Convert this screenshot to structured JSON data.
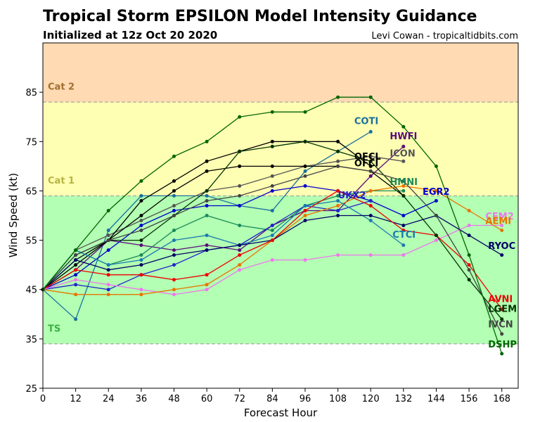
{
  "header": {
    "title": "Tropical Storm EPSILON Model Intensity Guidance",
    "subtitle": "Initialized at 12z Oct 20 2020",
    "credit": "Levi Cowan - tropicaltidbits.com"
  },
  "chart_data": {
    "type": "line",
    "xlabel": "Forecast Hour",
    "ylabel": "Wind Speed (kt)",
    "xlim": [
      0,
      174
    ],
    "ylim": [
      25,
      95
    ],
    "xticks": [
      0,
      12,
      24,
      36,
      48,
      60,
      72,
      84,
      96,
      108,
      120,
      132,
      144,
      156,
      168
    ],
    "yticks": [
      25,
      35,
      45,
      55,
      65,
      75,
      85
    ],
    "grid": false,
    "bands": [
      {
        "label": "TS",
        "from": 34,
        "to": 64,
        "color": "#b3ffb3",
        "label_color": "#3cb043",
        "label_y": 36.5
      },
      {
        "label": "Cat 1",
        "from": 64,
        "to": 83,
        "color": "#ffffb3",
        "label_color": "#b5b545",
        "label_y": 66.5
      },
      {
        "label": "Cat 2",
        "from": 83,
        "to": 95,
        "color": "#ffdab3",
        "label_color": "#a07030",
        "label_y": 85.5
      }
    ],
    "series": [
      {
        "name": "COTI",
        "color": "#1a6e9e",
        "label_x": 114,
        "label_y": 78.5,
        "x": [
          0,
          12,
          24,
          36,
          48,
          60,
          72,
          84,
          96,
          108,
          120
        ],
        "y": [
          45,
          39,
          57,
          64,
          64,
          64,
          62,
          61,
          69,
          73,
          77
        ]
      },
      {
        "name": "HWFI",
        "color": "#5a0a7a",
        "label_x": 127,
        "label_y": 75.5,
        "x": [
          0,
          12,
          24,
          36,
          48,
          60,
          72,
          84,
          96,
          108,
          120,
          132
        ],
        "y": [
          45,
          49,
          55,
          54,
          53,
          54,
          53,
          58,
          61,
          61,
          68,
          74
        ]
      },
      {
        "name": "ICON",
        "color": "#555555",
        "label_x": 127,
        "label_y": 72.0,
        "x": [
          0,
          12,
          24,
          36,
          48,
          60,
          72,
          84,
          96,
          108,
          120,
          132
        ],
        "y": [
          45,
          53,
          56,
          59,
          62,
          65,
          66,
          68,
          70,
          71,
          72,
          71
        ]
      },
      {
        "name": "OFCL",
        "color": "#000000",
        "label_x": 114,
        "label_y": 71.3,
        "x": [
          0,
          12,
          24,
          36,
          48,
          60,
          72,
          84,
          96,
          108,
          120
        ],
        "y": [
          45,
          51,
          55,
          63,
          67,
          71,
          73,
          75,
          75,
          75,
          70
        ]
      },
      {
        "name": "OFCI",
        "color": "#000000",
        "label_x": 114,
        "label_y": 70.0,
        "x": [
          0,
          12,
          24,
          36,
          48,
          60,
          72,
          84,
          96,
          108,
          120,
          132
        ],
        "y": [
          45,
          50,
          55,
          60,
          65,
          69,
          70,
          70,
          70,
          70,
          69,
          64
        ]
      },
      {
        "name": "HMNI",
        "color": "#1a8a5a",
        "label_x": 127,
        "label_y": 66.2,
        "x": [
          0,
          12,
          24,
          36,
          48,
          60,
          72,
          84,
          96,
          108,
          120,
          132
        ],
        "y": [
          45,
          53,
          50,
          52,
          57,
          60,
          58,
          57,
          62,
          64,
          65,
          65
        ]
      },
      {
        "name": "EGR2",
        "color": "#0000cc",
        "label_x": 139,
        "label_y": 64.2,
        "x": [
          0,
          12,
          24,
          36,
          48,
          60,
          72,
          84,
          96,
          108,
          120,
          132,
          144
        ],
        "y": [
          45,
          48,
          53,
          58,
          61,
          62,
          62,
          65,
          66,
          65,
          63,
          60,
          63
        ]
      },
      {
        "name": "UKX2",
        "color": "#2222cc",
        "label_x": 108,
        "label_y": 63.5,
        "x": [
          0,
          12,
          24,
          36,
          48,
          60,
          72,
          84,
          96,
          108,
          120
        ],
        "y": [
          45,
          46,
          45,
          48,
          50,
          53,
          54,
          58,
          62,
          61,
          63
        ]
      },
      {
        "name": "CEM2",
        "color": "#ee77ee",
        "label_x": 162,
        "label_y": 59.2,
        "x": [
          0,
          12,
          24,
          36,
          48,
          60,
          72,
          84,
          96,
          108,
          120,
          132,
          144,
          156,
          168
        ],
        "y": [
          45,
          47,
          46,
          45,
          44,
          45,
          49,
          51,
          51,
          52,
          52,
          52,
          55,
          58,
          58
        ]
      },
      {
        "name": "AEMI",
        "color": "#e87400",
        "label_x": 162,
        "label_y": 58.3,
        "x": [
          0,
          12,
          24,
          36,
          48,
          60,
          72,
          84,
          96,
          108,
          120,
          132,
          144,
          156,
          168
        ],
        "y": [
          45,
          44,
          44,
          44,
          45,
          46,
          50,
          55,
          60,
          62,
          65,
          66,
          65,
          61,
          57
        ]
      },
      {
        "name": "CTCI",
        "color": "#1a7ab0",
        "label_x": 128,
        "label_y": 55.5,
        "x": [
          0,
          12,
          24,
          36,
          48,
          60,
          72,
          84,
          96,
          108,
          120,
          132
        ],
        "y": [
          45,
          53,
          50,
          51,
          55,
          56,
          54,
          56,
          62,
          63,
          59,
          54
        ]
      },
      {
        "name": "RYOC",
        "color": "#000066",
        "label_x": 163,
        "label_y": 53.2,
        "x": [
          0,
          12,
          24,
          36,
          48,
          60,
          72,
          84,
          96,
          108,
          120,
          132,
          144,
          156,
          168
        ],
        "y": [
          45,
          51,
          49,
          50,
          52,
          53,
          54,
          55,
          59,
          60,
          60,
          58,
          60,
          56,
          52
        ]
      },
      {
        "name": "AVNI",
        "color": "#ee0000",
        "label_x": 163,
        "label_y": 42.5,
        "x": [
          0,
          12,
          24,
          36,
          48,
          60,
          72,
          84,
          96,
          108,
          120,
          132,
          144,
          156,
          168
        ],
        "y": [
          45,
          49,
          48,
          48,
          47,
          48,
          52,
          55,
          61,
          65,
          62,
          57,
          56,
          50,
          41
        ]
      },
      {
        "name": "LGEM",
        "color": "#003300",
        "label_x": 163,
        "label_y": 40.5,
        "x": [
          0,
          12,
          24,
          36,
          48,
          60,
          72,
          84,
          96,
          108,
          120,
          132,
          144,
          156,
          168
        ],
        "y": [
          45,
          52,
          55,
          55,
          60,
          65,
          73,
          74,
          75,
          73,
          71,
          64,
          56,
          47,
          39
        ]
      },
      {
        "name": "IVCN",
        "color": "#444444",
        "label_x": 163,
        "label_y": 37.3,
        "x": [
          0,
          12,
          24,
          36,
          48,
          60,
          72,
          84,
          96,
          108,
          120,
          132,
          144,
          156,
          168
        ],
        "y": [
          45,
          52,
          55,
          57,
          60,
          63,
          64,
          66,
          68,
          70,
          69,
          67,
          60,
          49,
          36
        ]
      },
      {
        "name": "DSHP",
        "color": "#006600",
        "label_x": 163,
        "label_y": 33.3,
        "x": [
          0,
          12,
          24,
          36,
          48,
          60,
          72,
          84,
          96,
          108,
          120,
          132,
          144,
          156,
          168
        ],
        "y": [
          45,
          53,
          61,
          67,
          72,
          75,
          80,
          81,
          81,
          84,
          84,
          78,
          70,
          52,
          32
        ]
      }
    ]
  }
}
